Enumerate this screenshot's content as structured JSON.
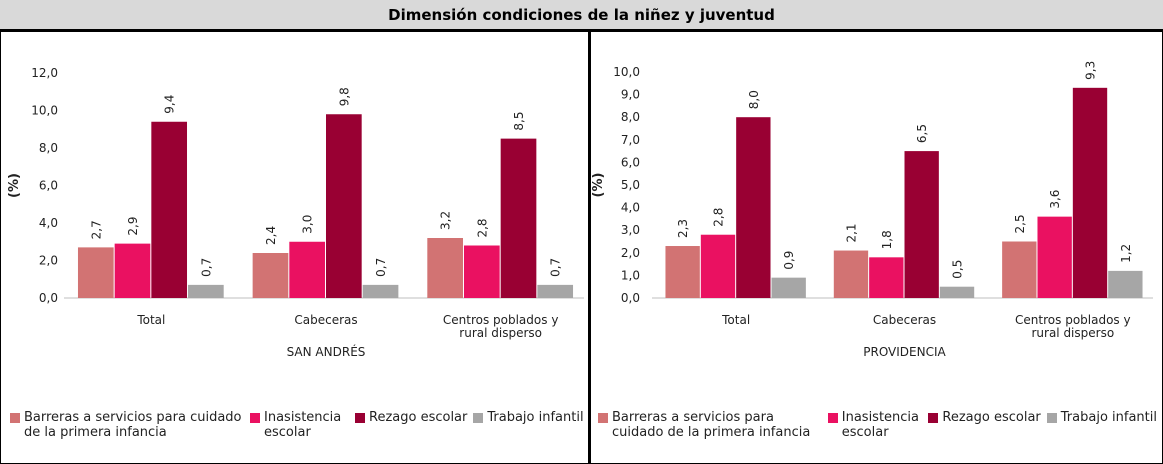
{
  "header": {
    "title": "Dimensión condiciones de la niñez y juventud"
  },
  "chart_data": [
    {
      "type": "bar",
      "y_label": "(%)",
      "x_label": "SAN ANDRÉS",
      "categories": [
        "Total",
        "Cabeceras",
        "Centros poblados y rural disperso"
      ],
      "ylim": [
        0,
        12
      ],
      "yticks": [
        {
          "value": 0,
          "label": "0,0"
        },
        {
          "value": 2,
          "label": "2,0"
        },
        {
          "value": 4,
          "label": "4,0"
        },
        {
          "value": 6,
          "label": "6,0"
        },
        {
          "value": 8,
          "label": "8,0"
        },
        {
          "value": 10,
          "label": "10,0"
        },
        {
          "value": 12,
          "label": "12,0"
        }
      ],
      "legend": "bottom",
      "series": [
        {
          "name": "Barreras a servicios para cuidado de la primera infancia",
          "color": "#d27373",
          "values": [
            2.7,
            2.4,
            3.2
          ],
          "value_labels": [
            "2,7",
            "2,4",
            "3,2"
          ]
        },
        {
          "name": "Inasistencia escolar",
          "color": "#ea1161",
          "values": [
            2.9,
            3.0,
            2.8
          ],
          "value_labels": [
            "2,9",
            "3,0",
            "2,8"
          ]
        },
        {
          "name": "Rezago escolar",
          "color": "#990033",
          "values": [
            9.4,
            9.8,
            8.5
          ],
          "value_labels": [
            "9,4",
            "9,8",
            "8,5"
          ]
        },
        {
          "name": "Trabajo infantil",
          "color": "#a6a6a6",
          "values": [
            0.7,
            0.7,
            0.7
          ],
          "value_labels": [
            "0,7",
            "0,7",
            "0,7"
          ]
        }
      ]
    },
    {
      "type": "bar",
      "y_label": "(%)",
      "x_label": "PROVIDENCIA",
      "categories": [
        "Total",
        "Cabeceras",
        "Centros poblados y rural disperso"
      ],
      "ylim": [
        0,
        10
      ],
      "yticks": [
        {
          "value": 0,
          "label": "0,0"
        },
        {
          "value": 1,
          "label": "1,0"
        },
        {
          "value": 2,
          "label": "2,0"
        },
        {
          "value": 3,
          "label": "3,0"
        },
        {
          "value": 4,
          "label": "4,0"
        },
        {
          "value": 5,
          "label": "5,0"
        },
        {
          "value": 6,
          "label": "6,0"
        },
        {
          "value": 7,
          "label": "7,0"
        },
        {
          "value": 8,
          "label": "8,0"
        },
        {
          "value": 9,
          "label": "9,0"
        },
        {
          "value": 10,
          "label": "10,0"
        }
      ],
      "legend": "bottom",
      "series": [
        {
          "name": "Barreras a servicios para cuidado de la primera infancia",
          "color": "#d27373",
          "values": [
            2.3,
            2.1,
            2.5
          ],
          "value_labels": [
            "2,3",
            "2,1",
            "2,5"
          ]
        },
        {
          "name": "Inasistencia escolar",
          "color": "#ea1161",
          "values": [
            2.8,
            1.8,
            3.6
          ],
          "value_labels": [
            "2,8",
            "1,8",
            "3,6"
          ]
        },
        {
          "name": "Rezago escolar",
          "color": "#990033",
          "values": [
            8.0,
            6.5,
            9.3
          ],
          "value_labels": [
            "8,0",
            "6,5",
            "9,3"
          ]
        },
        {
          "name": "Trabajo infantil",
          "color": "#a6a6a6",
          "values": [
            0.9,
            0.5,
            1.2
          ],
          "value_labels": [
            "0,9",
            "0,5",
            "1,2"
          ]
        }
      ]
    }
  ]
}
